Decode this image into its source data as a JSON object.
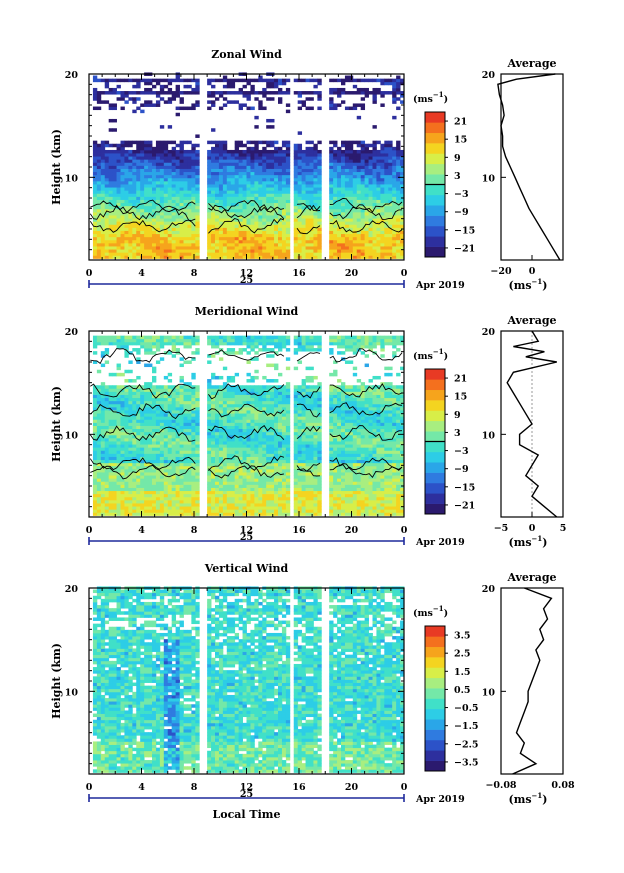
{
  "chart_data": [
    {
      "type": "heatmap",
      "title": "Zonal Wind",
      "ylabel": "Height (km)",
      "x_ticks": [
        "0",
        "4",
        "8",
        "12",
        "16",
        "20",
        "0"
      ],
      "y_ticks": [
        "20",
        "10"
      ],
      "xlim": [
        0,
        24
      ],
      "ylim": [
        2,
        20
      ],
      "day_label": "25",
      "date_label": "Apr 2019",
      "data_gaps_hours": [
        [
          8.2,
          8.9
        ],
        [
          15.1,
          15.6
        ],
        [
          17.7,
          18.1
        ]
      ],
      "colorbar": {
        "unit": "(ms",
        "unit_exp": "−1",
        "ticks": [
          "21",
          "15",
          "9",
          "3",
          "−3",
          "−9",
          "−15",
          "−21"
        ],
        "range": [
          -24,
          24
        ],
        "zero_line": 0,
        "colors": [
          "#2b1a6e",
          "#2d2f9e",
          "#2c52c8",
          "#2f7be0",
          "#2aa6e8",
          "#2dcde6",
          "#40e0c8",
          "#74e8a8",
          "#a8ee80",
          "#d8ee48",
          "#f4d420",
          "#f6a41c",
          "#f4701e",
          "#e83a24"
        ]
      },
      "profile": {
        "title": "Average",
        "xlabel": "(ms",
        "xlabel_exp": "−1",
        "x_ticks": [
          "−20",
          "0"
        ],
        "xlim": [
          -20,
          20
        ],
        "y_ticks": [
          "20",
          "10"
        ],
        "heights": [
          2,
          3,
          4,
          5,
          6,
          7,
          8,
          9,
          10,
          11,
          12,
          13,
          14,
          15,
          16,
          17,
          18,
          19,
          19.5,
          20
        ],
        "values": [
          18,
          14,
          10,
          6,
          2,
          -2,
          -5,
          -8,
          -11,
          -14,
          -17,
          -19,
          -19,
          -20,
          -18,
          -19,
          -21,
          -22,
          -10,
          15
        ]
      }
    },
    {
      "type": "heatmap",
      "title": "Meridional Wind",
      "ylabel": "Height (km)",
      "x_ticks": [
        "0",
        "4",
        "8",
        "12",
        "16",
        "20",
        "0"
      ],
      "y_ticks": [
        "20",
        "10"
      ],
      "xlim": [
        0,
        24
      ],
      "ylim": [
        2,
        20
      ],
      "day_label": "25",
      "date_label": "Apr 2019",
      "data_gaps_hours": [
        [
          8.2,
          8.9
        ],
        [
          15.1,
          15.6
        ],
        [
          17.7,
          18.1
        ]
      ],
      "colorbar": {
        "unit": "(ms",
        "unit_exp": "−1",
        "ticks": [
          "21",
          "15",
          "9",
          "3",
          "−3",
          "−9",
          "−15",
          "−21"
        ],
        "range": [
          -24,
          24
        ],
        "zero_line": 0,
        "colors": [
          "#2b1a6e",
          "#2d2f9e",
          "#2c52c8",
          "#2f7be0",
          "#2aa6e8",
          "#2dcde6",
          "#40e0c8",
          "#74e8a8",
          "#a8ee80",
          "#d8ee48",
          "#f4d420",
          "#f6a41c",
          "#f4701e",
          "#e83a24"
        ]
      },
      "profile": {
        "title": "Average",
        "xlabel": "(ms",
        "xlabel_exp": "−1",
        "x_ticks": [
          "−5",
          "0",
          "5"
        ],
        "xlim": [
          -5,
          5
        ],
        "y_ticks": [
          "20",
          "10"
        ],
        "heights": [
          2,
          3,
          4,
          5,
          6,
          7,
          8,
          9,
          10,
          11,
          12,
          13,
          14,
          15,
          16,
          17,
          17.5,
          18,
          18.5,
          19,
          20
        ],
        "values": [
          4,
          2,
          0,
          1,
          -1,
          0,
          1,
          -2,
          -2,
          0,
          -1,
          -2,
          -3,
          -4,
          -3,
          4,
          -1,
          2,
          -3,
          1,
          0
        ]
      }
    },
    {
      "type": "heatmap",
      "title": "Vertical Wind",
      "ylabel": "Height (km)",
      "xlabel": "Local Time",
      "x_ticks": [
        "0",
        "4",
        "8",
        "12",
        "16",
        "20",
        "0"
      ],
      "y_ticks": [
        "20",
        "10"
      ],
      "xlim": [
        0,
        24
      ],
      "ylim": [
        2,
        20
      ],
      "day_label": "25",
      "date_label": "Apr 2019",
      "data_gaps_hours": [
        [
          8.2,
          8.9
        ],
        [
          15.1,
          15.6
        ],
        [
          17.7,
          18.1
        ]
      ],
      "colorbar": {
        "unit": "(ms",
        "unit_exp": "−1",
        "ticks": [
          "3.5",
          "2.5",
          "1.5",
          "0.5",
          "−0.5",
          "−1.5",
          "−2.5",
          "−3.5"
        ],
        "range": [
          -4,
          4
        ],
        "colors": [
          "#2b1a6e",
          "#2d2f9e",
          "#2c52c8",
          "#2f7be0",
          "#2aa6e8",
          "#2dcde6",
          "#40e0c8",
          "#74e8a8",
          "#a8ee80",
          "#d8ee48",
          "#f4d420",
          "#f6a41c",
          "#f4701e",
          "#e83a24"
        ]
      },
      "profile": {
        "title": "Average",
        "xlabel": "(ms",
        "xlabel_exp": "−1",
        "x_ticks": [
          "−0.08",
          "0.08"
        ],
        "xlim": [
          -0.08,
          0.08
        ],
        "y_ticks": [
          "20",
          "10"
        ],
        "heights": [
          2,
          3,
          4,
          5,
          6,
          7,
          8,
          9,
          10,
          11,
          12,
          13,
          14,
          15,
          16,
          17,
          18,
          19,
          20
        ],
        "values": [
          -0.05,
          0.01,
          -0.03,
          -0.02,
          -0.04,
          -0.03,
          -0.02,
          -0.01,
          -0.01,
          0.0,
          0.01,
          0.02,
          0.01,
          0.03,
          0.02,
          0.04,
          0.03,
          0.05,
          -0.02
        ]
      }
    }
  ]
}
